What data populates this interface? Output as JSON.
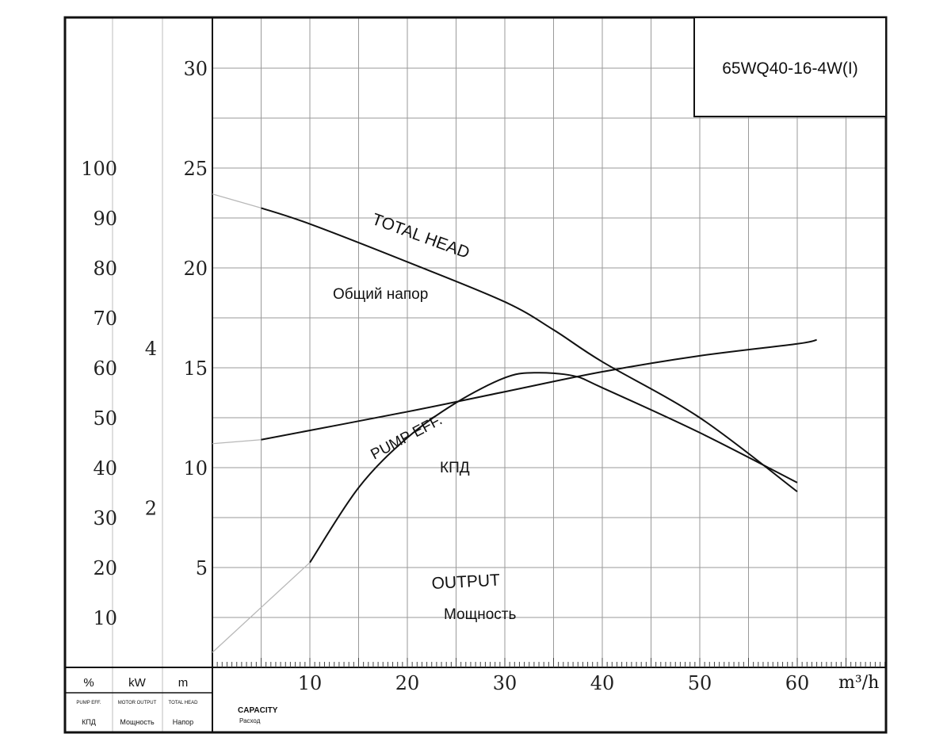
{
  "chart_data": {
    "type": "line",
    "title": "65WQ40-16-4W(I)",
    "xlabel": "CAPACITY",
    "xlabel_sub": "Расход",
    "x_unit": "m³/h",
    "xlim": [
      0,
      70
    ],
    "x_ticks": [
      "10",
      "20",
      "30",
      "40",
      "50",
      "60"
    ],
    "axes": {
      "head": {
        "unit": "m",
        "label": "TOTAL HEAD",
        "label_ru": "Напор",
        "range": [
          0,
          32
        ],
        "ticks": [
          "5",
          "10",
          "15",
          "20",
          "25",
          "30"
        ]
      },
      "power": {
        "unit": "kW",
        "label": "MOTOR OUTPUT",
        "label_ru": "Мощность",
        "range": [
          0,
          8
        ],
        "ticks": [
          "2",
          "4"
        ]
      },
      "efficiency": {
        "unit": "%",
        "label": "PUMP EFF.",
        "label_ru": "КПД",
        "range": [
          0,
          128
        ],
        "ticks": [
          "10",
          "20",
          "30",
          "40",
          "50",
          "60",
          "70",
          "80",
          "90",
          "100"
        ]
      }
    },
    "grid": true,
    "series": [
      {
        "name": "TOTAL HEAD",
        "name_ru": "Общий напор",
        "axis": "head",
        "x": [
          5,
          10,
          20,
          30,
          35,
          40,
          50,
          60
        ],
        "y": [
          23,
          22.2,
          20.3,
          18.3,
          16.9,
          15.3,
          12.5,
          8.8
        ],
        "extrapolate_to_x": 0,
        "extrapolate_y": 23.7
      },
      {
        "name": "PUMP EFF.",
        "name_ru": "КПД",
        "axis": "efficiency",
        "x": [
          10,
          15,
          20,
          25,
          30,
          33,
          37,
          40,
          50,
          60
        ],
        "y": [
          21,
          36,
          46,
          53,
          58,
          59,
          58.4,
          56,
          47,
          37
        ],
        "extrapolate_to_x": 0,
        "extrapolate_y": 3
      },
      {
        "name": "OUTPUT",
        "name_ru": "Мощность",
        "axis": "power",
        "x": [
          5,
          20,
          30,
          40,
          50,
          60,
          62
        ],
        "y": [
          2.85,
          3.2,
          3.45,
          3.7,
          3.9,
          4.05,
          4.1
        ],
        "extrapolate_to_x": 0,
        "extrapolate_y": 2.8
      }
    ],
    "header_cells": [
      {
        "unit": "%",
        "label": "PUMP EFF.",
        "label_ru": "КПД"
      },
      {
        "unit": "kW",
        "label": "MOTOR OUTPUT",
        "label_ru": "Мощность"
      },
      {
        "unit": "m",
        "label": "TOTAL HEAD",
        "label_ru": "Напор"
      }
    ]
  }
}
